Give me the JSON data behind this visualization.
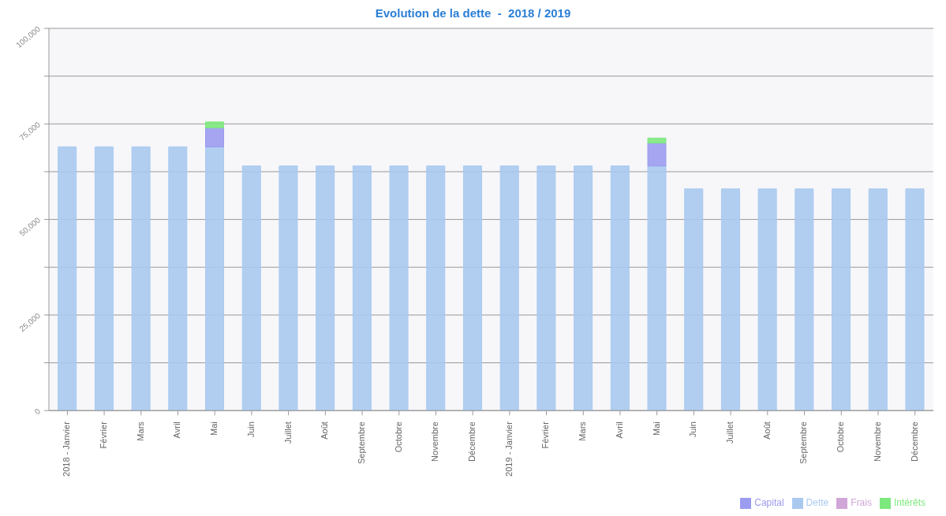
{
  "chart_data": {
    "type": "bar",
    "title": "Evolution de la dette  -  2018 / 2019",
    "stacked": true,
    "categories": [
      "2018 - Janvier",
      "Février",
      "Mars",
      "Avril",
      "Mai",
      "Juin",
      "Juillet",
      "Août",
      "Septembre",
      "Octobre",
      "Novembre",
      "Décembre",
      "2019 - Janvier",
      "Février",
      "Mars",
      "Avril",
      "Mai",
      "Juin",
      "Juillet",
      "Août",
      "Septembre",
      "Octobre",
      "Novembre",
      "Décembre"
    ],
    "series": [
      {
        "name": "Dette",
        "color": "#a9c9f0",
        "values": [
          69000,
          69000,
          69000,
          69000,
          69000,
          64000,
          64000,
          64000,
          64000,
          64000,
          64000,
          64000,
          64000,
          64000,
          64000,
          64000,
          64000,
          58000,
          58000,
          58000,
          58000,
          58000,
          58000,
          58000
        ]
      },
      {
        "name": "Capital",
        "color": "#9b9bef",
        "values": [
          null,
          null,
          null,
          null,
          5000,
          null,
          null,
          null,
          null,
          null,
          null,
          null,
          null,
          null,
          null,
          null,
          6000,
          null,
          null,
          null,
          null,
          null,
          null,
          null
        ]
      },
      {
        "name": "Intérêts",
        "color": "#7de87d",
        "values": [
          null,
          null,
          null,
          null,
          1500,
          null,
          null,
          null,
          null,
          null,
          null,
          null,
          null,
          null,
          null,
          null,
          1300,
          null,
          null,
          null,
          null,
          null,
          null,
          null
        ]
      },
      {
        "name": "Frais",
        "color": "#d0a6d8",
        "values": [
          null,
          null,
          null,
          null,
          null,
          null,
          null,
          null,
          null,
          null,
          null,
          null,
          null,
          null,
          null,
          null,
          null,
          null,
          null,
          null,
          null,
          null,
          null,
          null
        ]
      }
    ],
    "ylim": [
      0,
      100000
    ],
    "yticks": [
      {
        "value": 0,
        "label": "0"
      },
      {
        "value": 12500,
        "label": null
      },
      {
        "value": 25000,
        "label": "25,000"
      },
      {
        "value": 37500,
        "label": null
      },
      {
        "value": 50000,
        "label": "50,000"
      },
      {
        "value": 62500,
        "label": null
      },
      {
        "value": 75000,
        "label": "75,000"
      },
      {
        "value": 87500,
        "label": null
      },
      {
        "value": 100000,
        "label": "100,000"
      }
    ],
    "grid": "y",
    "legend": "bottom right"
  }
}
